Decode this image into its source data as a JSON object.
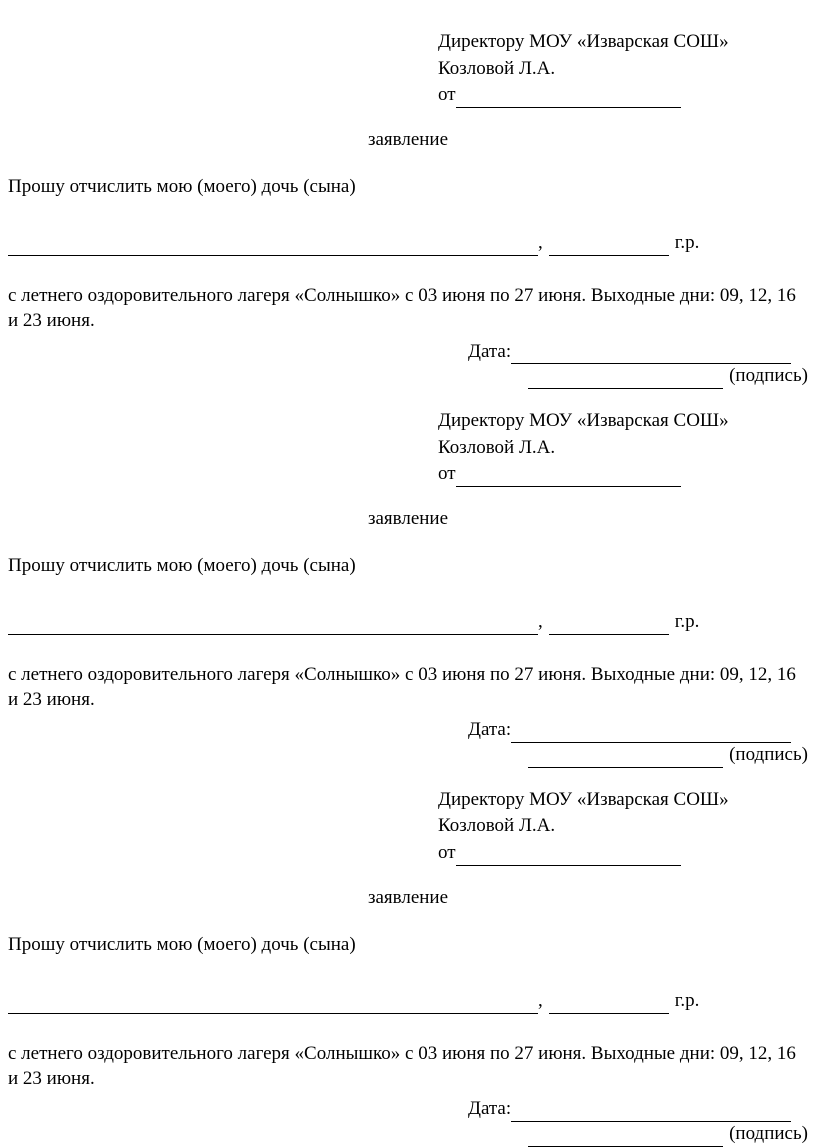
{
  "addressee_line1": "Директору МОУ «Изварская СОШ»",
  "addressee_line2": "Козловой Л.А.",
  "from_prefix": "от",
  "title": "заявление",
  "request_text": "Прошу отчислить мою (моего) дочь (сына)",
  "comma": ",",
  "year_suffix": "г.р.",
  "body_text": "с летнего оздоровительного лагеря «Солнышко» с 03 июня по 27 июня. Выходные дни: 09, 12, 16 и 23 июня.",
  "date_label": "Дата:",
  "signature_label": "(подпись)"
}
